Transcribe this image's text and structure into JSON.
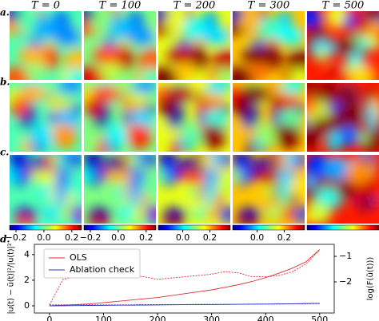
{
  "row_labels": [
    "a.",
    "b.",
    "c.",
    "d."
  ],
  "heatmaps": {
    "column_titles": [
      "T = 0",
      "T = 100",
      "T = 200",
      "T = 300",
      "T = 500"
    ],
    "colorbars": [
      {
        "clim": [
          -0.246,
          0.27
        ],
        "ticks": [
          {
            "value": -0.2,
            "label": "−0.2"
          },
          {
            "value": 0,
            "label": "0.0"
          },
          0.2
        ]
      },
      {
        "clim": [
          -0.246,
          0.27
        ],
        "ticks": [
          {
            "value": -0.2,
            "label": "−0.2"
          },
          {
            "value": 0,
            "label": "0.0"
          },
          0.2
        ]
      },
      {
        "clim": [
          -0.18,
          0.35
        ],
        "ticks": [
          {
            "value": 0,
            "label": "0.0"
          },
          0.2
        ]
      },
      {
        "clim": [
          -0.18,
          0.35
        ],
        "ticks": [
          {
            "value": 0,
            "label": "0.0"
          },
          0.2
        ]
      }
    ]
  },
  "chart_data": {
    "type": "line",
    "x": [
      0,
      25,
      50,
      75,
      100,
      125,
      150,
      175,
      200,
      225,
      250,
      275,
      300,
      325,
      350,
      375,
      400,
      425,
      450,
      475,
      500
    ],
    "xlim": [
      -28,
      527
    ],
    "xticks": [
      0,
      100,
      200,
      300,
      400,
      500
    ],
    "ylim": [
      -0.56,
      4.8
    ],
    "yticks": [
      0,
      2,
      4
    ],
    "y2lim": [
      -3.22,
      -0.53
    ],
    "y2ticks": [
      {
        "value": -2,
        "label": "−2"
      },
      {
        "value": -1,
        "label": "−1"
      }
    ],
    "ylabel": "|u(t) − ũ(t)|²/|u(t)|²",
    "y2label": "log(F(ũ(t)))",
    "legend": "upper left",
    "series": [
      {
        "name": "OLS",
        "color": "#e03030",
        "style": "solid",
        "values": [
          0,
          0.05,
          0.1,
          0.15,
          0.25,
          0.35,
          0.45,
          0.55,
          0.65,
          0.8,
          0.95,
          1.1,
          1.25,
          1.45,
          1.65,
          1.9,
          2.2,
          2.55,
          2.95,
          3.45,
          4.4
        ]
      },
      {
        "name": "Ablation check",
        "color": "#3030d0",
        "style": "solid",
        "values": [
          0,
          0.01,
          0.02,
          0.03,
          0.04,
          0.05,
          0.05,
          0.06,
          0.07,
          0.08,
          0.09,
          0.1,
          0.1,
          0.11,
          0.12,
          0.13,
          0.14,
          0.15,
          0.16,
          0.18,
          0.2
        ]
      },
      {
        "color": "#e03030",
        "style": "dashed",
        "axis": "y2",
        "values": [
          -2.9,
          -1.9,
          -1.8,
          -1.75,
          -1.7,
          -1.7,
          -1.75,
          -1.8,
          -1.9,
          -1.85,
          -1.8,
          -1.75,
          -1.7,
          -1.6,
          -1.65,
          -1.8,
          -1.8,
          -1.75,
          -1.6,
          -1.3,
          -0.75
        ]
      },
      {
        "color": "#3030d0",
        "style": "dashed",
        "axis": "y2",
        "values": [
          -2.9,
          -2.9,
          -2.9,
          -2.9,
          -2.9,
          -2.9,
          -2.9,
          -2.89,
          -2.89,
          -2.89,
          -2.89,
          -2.88,
          -2.88,
          -2.88,
          -2.88,
          -2.87,
          -2.87,
          -2.87,
          -2.86,
          -2.86,
          -2.85
        ]
      }
    ]
  }
}
